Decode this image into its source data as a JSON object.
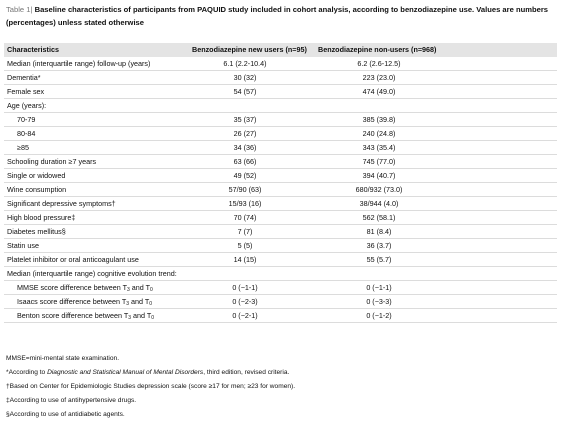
{
  "caption": {
    "label": "Table 1|",
    "text": "Baseline characteristics of participants from PAQUID study included in cohort analysis, according to benzodiazepine use. Values are numbers (percentages) unless stated otherwise"
  },
  "table": {
    "header": [
      "Characteristics",
      "Benzodiazepine new users (n=95)",
      "Benzodiazepine non-users (n=968)"
    ],
    "rows": [
      {
        "label": "Median (interquartile range) follow-up (years)",
        "values": [
          "6.1 (2.2-10.4)",
          "6.2 (2.6-12.5)"
        ]
      },
      {
        "label": "Dementia*",
        "values": [
          "30 (32)",
          "223 (23.0)"
        ]
      },
      {
        "label": "Female sex",
        "values": [
          "54 (57)",
          "474 (49.0)"
        ]
      },
      {
        "label": "Age (years):",
        "rows": [
          {
            "label": "70-79",
            "values": [
              "35 (37)",
              "385 (39.8)"
            ]
          },
          {
            "label": "80-84",
            "values": [
              "26 (27)",
              "240 (24.8)"
            ]
          },
          {
            "label": "≥85",
            "values": [
              "34 (36)",
              "343 (35.4)"
            ]
          }
        ]
      },
      {
        "label": "Schooling duration ≥7 years",
        "values": [
          "63 (66)",
          "745 (77.0)"
        ]
      },
      {
        "label": "Single or widowed",
        "values": [
          "49 (52)",
          "394 (40.7)"
        ]
      },
      {
        "label": "Wine consumption",
        "values": [
          "57/90 (63)",
          "680/932 (73.0)"
        ]
      },
      {
        "label": "Significant depressive symptoms†",
        "values": [
          "15/93 (16)",
          "38/944 (4.0)"
        ]
      },
      {
        "label": "High blood pressure‡",
        "values": [
          "70 (74)",
          "562 (58.1)"
        ]
      },
      {
        "label": "Diabetes mellitus§",
        "values": [
          "7 (7)",
          "81 (8.4)"
        ]
      },
      {
        "label": "Statin use",
        "values": [
          "5 (5)",
          "36 (3.7)"
        ]
      },
      {
        "label": "Platelet inhibitor or oral anticoagulant use",
        "values": [
          "14 (15)",
          "55 (5.7)"
        ]
      },
      {
        "label": "Median (interquartile range) cognitive evolution trend:",
        "rows": [
          {
            "label": [
              "MMSE score difference between T",
              "3",
              " and T",
              "0"
            ],
            "values": [
              "0 (−1-1)",
              "0 (−1-1)"
            ]
          },
          {
            "label": [
              "Isaacs score difference between T",
              "3",
              " and T",
              "0"
            ],
            "values": [
              "0 (−2-3)",
              "0 (−3-3)"
            ]
          },
          {
            "label": [
              "Benton score difference between T",
              "3",
              " and T",
              "0"
            ],
            "values": [
              "0 (−2-1)",
              "0 (−1-2)"
            ]
          }
        ]
      }
    ]
  },
  "footnotes": [
    [
      "MMSE=mini-mental state examination."
    ],
    [
      "*According to ",
      "Diagnostic and Statistical Manual of Mental Disorders",
      ", third edition, revised criteria."
    ],
    [
      "†Based on Center for Epidemiologic Studies depression scale (score ≥17 for men; ≥23 for women)."
    ],
    [
      "‡According to use of antihypertensive drugs."
    ],
    [
      "§According to use of antidiabetic agents."
    ]
  ]
}
